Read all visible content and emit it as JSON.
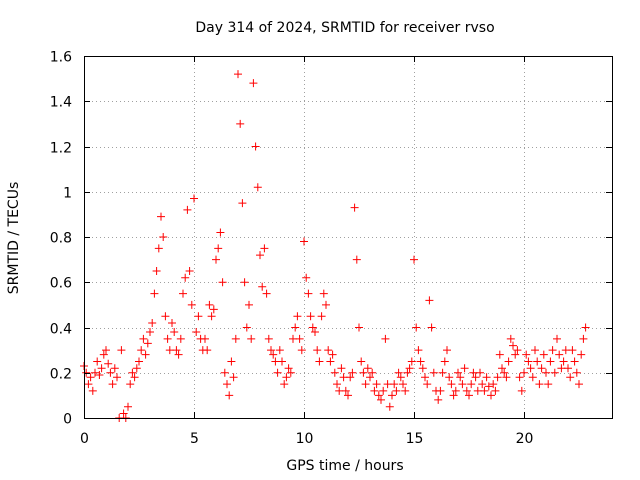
{
  "chart_data": {
    "type": "scatter",
    "title": "Day 314 of 2024, SRMTID for receiver rvso",
    "xlabel": "GPS time / hours",
    "ylabel": "SRMTID / TECUs",
    "xlim": [
      0,
      24
    ],
    "ylim": [
      0,
      1.6
    ],
    "xticks": [
      0,
      5,
      10,
      15,
      20
    ],
    "xtick_labels": [
      "0",
      "5",
      "10",
      "15",
      "20"
    ],
    "yticks": [
      0,
      0.2,
      0.4,
      0.6,
      0.8,
      1.0,
      1.2,
      1.4,
      1.6
    ],
    "ytick_labels": [
      "0",
      "0.2",
      "0.4",
      "0.6",
      "0.8",
      "1",
      "1.2",
      "1.4",
      "1.6"
    ],
    "grid": true,
    "marker": "plus",
    "color": "#ff0000",
    "series": [
      {
        "name": "SRMTID",
        "points": [
          [
            0.0,
            0.23
          ],
          [
            0.1,
            0.2
          ],
          [
            0.2,
            0.15
          ],
          [
            0.3,
            0.18
          ],
          [
            0.4,
            0.12
          ],
          [
            0.5,
            0.2
          ],
          [
            0.6,
            0.25
          ],
          [
            0.7,
            0.19
          ],
          [
            0.8,
            0.22
          ],
          [
            0.9,
            0.28
          ],
          [
            1.0,
            0.3
          ],
          [
            1.1,
            0.24
          ],
          [
            1.2,
            0.2
          ],
          [
            1.3,
            0.15
          ],
          [
            1.4,
            0.22
          ],
          [
            1.5,
            0.18
          ],
          [
            1.6,
            0.0
          ],
          [
            1.7,
            0.3
          ],
          [
            1.8,
            0.02
          ],
          [
            1.9,
            0.0
          ],
          [
            2.0,
            0.05
          ],
          [
            2.1,
            0.15
          ],
          [
            2.2,
            0.2
          ],
          [
            2.3,
            0.18
          ],
          [
            2.4,
            0.22
          ],
          [
            2.5,
            0.25
          ],
          [
            2.6,
            0.3
          ],
          [
            2.7,
            0.35
          ],
          [
            2.8,
            0.28
          ],
          [
            2.9,
            0.33
          ],
          [
            3.0,
            0.38
          ],
          [
            3.1,
            0.42
          ],
          [
            3.2,
            0.55
          ],
          [
            3.3,
            0.65
          ],
          [
            3.4,
            0.75
          ],
          [
            3.5,
            0.89
          ],
          [
            3.6,
            0.8
          ],
          [
            3.7,
            0.45
          ],
          [
            3.8,
            0.35
          ],
          [
            3.9,
            0.3
          ],
          [
            4.0,
            0.42
          ],
          [
            4.1,
            0.38
          ],
          [
            4.2,
            0.3
          ],
          [
            4.3,
            0.28
          ],
          [
            4.4,
            0.35
          ],
          [
            4.5,
            0.55
          ],
          [
            4.6,
            0.62
          ],
          [
            4.7,
            0.92
          ],
          [
            4.8,
            0.65
          ],
          [
            4.9,
            0.5
          ],
          [
            5.0,
            0.97
          ],
          [
            5.1,
            0.38
          ],
          [
            5.2,
            0.45
          ],
          [
            5.3,
            0.35
          ],
          [
            5.4,
            0.3
          ],
          [
            5.5,
            0.35
          ],
          [
            5.6,
            0.3
          ],
          [
            5.7,
            0.5
          ],
          [
            5.8,
            0.45
          ],
          [
            5.9,
            0.48
          ],
          [
            6.0,
            0.7
          ],
          [
            6.1,
            0.75
          ],
          [
            6.2,
            0.82
          ],
          [
            6.3,
            0.6
          ],
          [
            6.4,
            0.2
          ],
          [
            6.5,
            0.15
          ],
          [
            6.6,
            0.1
          ],
          [
            6.7,
            0.25
          ],
          [
            6.8,
            0.18
          ],
          [
            6.9,
            0.35
          ],
          [
            7.0,
            1.52
          ],
          [
            7.1,
            1.3
          ],
          [
            7.2,
            0.95
          ],
          [
            7.3,
            0.6
          ],
          [
            7.4,
            0.4
          ],
          [
            7.5,
            0.5
          ],
          [
            7.6,
            0.35
          ],
          [
            7.7,
            1.48
          ],
          [
            7.8,
            1.2
          ],
          [
            7.9,
            1.02
          ],
          [
            8.0,
            0.72
          ],
          [
            8.1,
            0.58
          ],
          [
            8.2,
            0.75
          ],
          [
            8.3,
            0.55
          ],
          [
            8.4,
            0.35
          ],
          [
            8.5,
            0.3
          ],
          [
            8.6,
            0.28
          ],
          [
            8.7,
            0.25
          ],
          [
            8.8,
            0.2
          ],
          [
            8.9,
            0.3
          ],
          [
            9.0,
            0.25
          ],
          [
            9.1,
            0.15
          ],
          [
            9.2,
            0.18
          ],
          [
            9.3,
            0.22
          ],
          [
            9.4,
            0.2
          ],
          [
            9.5,
            0.35
          ],
          [
            9.6,
            0.4
          ],
          [
            9.7,
            0.45
          ],
          [
            9.8,
            0.35
          ],
          [
            9.9,
            0.3
          ],
          [
            10.0,
            0.78
          ],
          [
            10.1,
            0.62
          ],
          [
            10.2,
            0.55
          ],
          [
            10.3,
            0.45
          ],
          [
            10.4,
            0.4
          ],
          [
            10.5,
            0.38
          ],
          [
            10.6,
            0.3
          ],
          [
            10.7,
            0.25
          ],
          [
            10.8,
            0.45
          ],
          [
            10.9,
            0.55
          ],
          [
            11.0,
            0.5
          ],
          [
            11.1,
            0.3
          ],
          [
            11.2,
            0.25
          ],
          [
            11.3,
            0.28
          ],
          [
            11.4,
            0.2
          ],
          [
            11.5,
            0.15
          ],
          [
            11.6,
            0.12
          ],
          [
            11.7,
            0.22
          ],
          [
            11.8,
            0.18
          ],
          [
            11.9,
            0.12
          ],
          [
            12.0,
            0.1
          ],
          [
            12.1,
            0.18
          ],
          [
            12.2,
            0.2
          ],
          [
            12.3,
            0.93
          ],
          [
            12.4,
            0.7
          ],
          [
            12.5,
            0.4
          ],
          [
            12.6,
            0.25
          ],
          [
            12.7,
            0.2
          ],
          [
            12.8,
            0.15
          ],
          [
            12.9,
            0.22
          ],
          [
            13.0,
            0.18
          ],
          [
            13.1,
            0.2
          ],
          [
            13.2,
            0.12
          ],
          [
            13.3,
            0.15
          ],
          [
            13.4,
            0.1
          ],
          [
            13.5,
            0.08
          ],
          [
            13.6,
            0.12
          ],
          [
            13.7,
            0.35
          ],
          [
            13.8,
            0.15
          ],
          [
            13.9,
            0.05
          ],
          [
            14.0,
            0.1
          ],
          [
            14.1,
            0.15
          ],
          [
            14.2,
            0.12
          ],
          [
            14.3,
            0.2
          ],
          [
            14.4,
            0.18
          ],
          [
            14.5,
            0.15
          ],
          [
            14.6,
            0.12
          ],
          [
            14.7,
            0.2
          ],
          [
            14.8,
            0.22
          ],
          [
            14.9,
            0.25
          ],
          [
            15.0,
            0.7
          ],
          [
            15.1,
            0.4
          ],
          [
            15.2,
            0.3
          ],
          [
            15.3,
            0.25
          ],
          [
            15.4,
            0.22
          ],
          [
            15.5,
            0.18
          ],
          [
            15.6,
            0.15
          ],
          [
            15.7,
            0.52
          ],
          [
            15.8,
            0.4
          ],
          [
            15.9,
            0.2
          ],
          [
            16.0,
            0.12
          ],
          [
            16.1,
            0.08
          ],
          [
            16.2,
            0.12
          ],
          [
            16.3,
            0.2
          ],
          [
            16.4,
            0.25
          ],
          [
            16.5,
            0.3
          ],
          [
            16.6,
            0.18
          ],
          [
            16.7,
            0.15
          ],
          [
            16.8,
            0.1
          ],
          [
            16.9,
            0.12
          ],
          [
            17.0,
            0.2
          ],
          [
            17.1,
            0.18
          ],
          [
            17.2,
            0.15
          ],
          [
            17.3,
            0.22
          ],
          [
            17.4,
            0.12
          ],
          [
            17.5,
            0.1
          ],
          [
            17.6,
            0.15
          ],
          [
            17.7,
            0.2
          ],
          [
            17.8,
            0.18
          ],
          [
            17.9,
            0.12
          ],
          [
            18.0,
            0.2
          ],
          [
            18.1,
            0.15
          ],
          [
            18.2,
            0.12
          ],
          [
            18.3,
            0.18
          ],
          [
            18.4,
            0.14
          ],
          [
            18.5,
            0.1
          ],
          [
            18.6,
            0.15
          ],
          [
            18.7,
            0.12
          ],
          [
            18.8,
            0.18
          ],
          [
            18.9,
            0.28
          ],
          [
            19.0,
            0.22
          ],
          [
            19.1,
            0.2
          ],
          [
            19.2,
            0.18
          ],
          [
            19.3,
            0.25
          ],
          [
            19.4,
            0.35
          ],
          [
            19.5,
            0.32
          ],
          [
            19.6,
            0.28
          ],
          [
            19.7,
            0.3
          ],
          [
            19.8,
            0.18
          ],
          [
            19.9,
            0.12
          ],
          [
            20.0,
            0.2
          ],
          [
            20.1,
            0.28
          ],
          [
            20.2,
            0.25
          ],
          [
            20.3,
            0.22
          ],
          [
            20.4,
            0.18
          ],
          [
            20.5,
            0.3
          ],
          [
            20.6,
            0.25
          ],
          [
            20.7,
            0.15
          ],
          [
            20.8,
            0.22
          ],
          [
            20.9,
            0.28
          ],
          [
            21.0,
            0.2
          ],
          [
            21.1,
            0.15
          ],
          [
            21.2,
            0.25
          ],
          [
            21.3,
            0.3
          ],
          [
            21.4,
            0.2
          ],
          [
            21.5,
            0.35
          ],
          [
            21.6,
            0.28
          ],
          [
            21.7,
            0.22
          ],
          [
            21.8,
            0.25
          ],
          [
            21.9,
            0.3
          ],
          [
            22.0,
            0.22
          ],
          [
            22.1,
            0.18
          ],
          [
            22.2,
            0.3
          ],
          [
            22.3,
            0.25
          ],
          [
            22.4,
            0.2
          ],
          [
            22.5,
            0.15
          ],
          [
            22.6,
            0.28
          ],
          [
            22.7,
            0.35
          ],
          [
            22.8,
            0.4
          ]
        ]
      }
    ]
  }
}
